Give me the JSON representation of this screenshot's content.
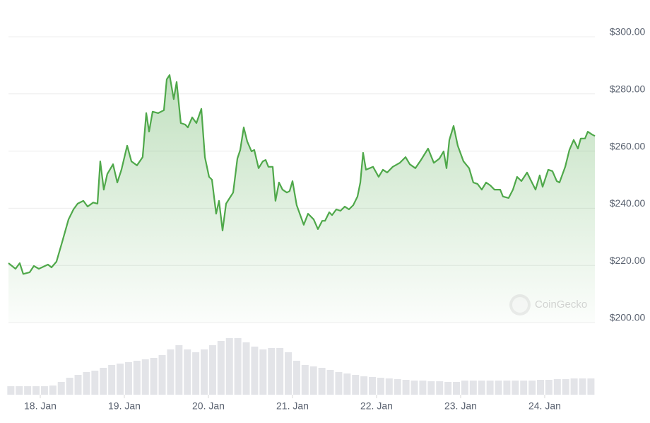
{
  "chart_data": {
    "type": "line",
    "color": "#4fa84a",
    "x": [
      17.622,
      17.706,
      17.756,
      17.798,
      17.874,
      17.924,
      17.983,
      18.092,
      18.134,
      18.193,
      18.261,
      18.336,
      18.395,
      18.445,
      18.513,
      18.563,
      18.63,
      18.681,
      18.714,
      18.756,
      18.798,
      18.866,
      18.916,
      18.966,
      19.034,
      19.084,
      19.151,
      19.218,
      19.261,
      19.294,
      19.336,
      19.403,
      19.471,
      19.504,
      19.538,
      19.588,
      19.622,
      19.672,
      19.723,
      19.756,
      19.807,
      19.857,
      19.916,
      19.958,
      20.008,
      20.042,
      20.092,
      20.126,
      20.168,
      20.21,
      20.294,
      20.345,
      20.378,
      20.42,
      20.462,
      20.513,
      20.546,
      20.597,
      20.647,
      20.681,
      20.714,
      20.765,
      20.798,
      20.84,
      20.882,
      20.933,
      20.966,
      21.0,
      21.05,
      21.134,
      21.185,
      21.252,
      21.303,
      21.353,
      21.387,
      21.437,
      21.471,
      21.521,
      21.571,
      21.622,
      21.672,
      21.723,
      21.773,
      21.807,
      21.84,
      21.874,
      21.958,
      22.025,
      22.076,
      22.126,
      22.193,
      22.277,
      22.345,
      22.395,
      22.462,
      22.529,
      22.613,
      22.681,
      22.748,
      22.798,
      22.832,
      22.866,
      22.916,
      22.966,
      23.034,
      23.101,
      23.151,
      23.202,
      23.252,
      23.303,
      23.353,
      23.403,
      23.471,
      23.504,
      23.571,
      23.622,
      23.672,
      23.723,
      23.79,
      23.84,
      23.891,
      23.941,
      23.975,
      24.042,
      24.092,
      24.143,
      24.176,
      24.244,
      24.294,
      24.345,
      24.395,
      24.429,
      24.479,
      24.513,
      24.563,
      24.597
    ],
    "values": [
      220.8,
      218.8,
      220.8,
      217,
      217.6,
      219.8,
      218.8,
      220.3,
      219.3,
      221.3,
      228.2,
      236.1,
      239.6,
      241.6,
      242.6,
      240.6,
      242,
      241.6,
      256.4,
      246.5,
      252,
      255.4,
      249,
      253.5,
      261.9,
      256.4,
      255,
      257.9,
      273.3,
      266.8,
      273.8,
      273.3,
      274.3,
      285.1,
      286.6,
      278.2,
      284.2,
      269.8,
      269.3,
      268.3,
      271.8,
      269.8,
      274.8,
      257.9,
      251,
      250,
      238.1,
      242.6,
      232.2,
      241.6,
      245.5,
      257.4,
      260.4,
      268.3,
      263.4,
      259.9,
      260.4,
      254,
      256.4,
      256.9,
      254.5,
      254.5,
      242.6,
      249,
      246.5,
      245.5,
      246,
      249.5,
      241.1,
      234.2,
      238.1,
      236.1,
      232.7,
      235.6,
      235.6,
      238.6,
      237.6,
      239.6,
      239.1,
      240.6,
      239.6,
      241.1,
      244.1,
      249,
      259.4,
      253.5,
      254.5,
      251,
      253.5,
      252.5,
      254.5,
      255.9,
      257.9,
      255.4,
      254,
      256.9,
      260.9,
      255.9,
      257.4,
      259.9,
      254,
      263.9,
      268.8,
      261.9,
      256.4,
      254,
      249,
      248.5,
      246.5,
      249,
      248,
      246.5,
      246.5,
      244.1,
      243.6,
      246.5,
      251,
      249.5,
      252.5,
      249.5,
      246.5,
      251.5,
      247.5,
      253.5,
      253,
      249.5,
      249,
      254.5,
      260.4,
      263.9,
      260.9,
      264.4,
      264.4,
      266.8,
      265.8,
      265.3
    ],
    "xlim": [
      17.622,
      24.597
    ],
    "ylim": [
      200,
      300
    ],
    "yticks": [
      {
        "value": 200,
        "label": "$200.00"
      },
      {
        "value": 220,
        "label": "$220.00"
      },
      {
        "value": 240,
        "label": "$240.00"
      },
      {
        "value": 260,
        "label": "$260.00"
      },
      {
        "value": 280,
        "label": "$280.00"
      },
      {
        "value": 300,
        "label": "$300.00"
      }
    ],
    "xticks": [
      {
        "value": 18,
        "label": "18. Jan"
      },
      {
        "value": 19,
        "label": "19. Jan"
      },
      {
        "value": 20,
        "label": "20. Jan"
      },
      {
        "value": 21,
        "label": "21. Jan"
      },
      {
        "value": 22,
        "label": "22. Jan"
      },
      {
        "value": 23,
        "label": "23. Jan"
      },
      {
        "value": 24,
        "label": "24. Jan"
      }
    ],
    "grid": true,
    "watermark": "CoinGecko",
    "volume": {
      "type": "bar",
      "color": "#e3e4e8",
      "ylim": [
        0,
        80
      ],
      "x": [
        17.65,
        17.75,
        17.85,
        17.95,
        18.05,
        18.15,
        18.25,
        18.35,
        18.45,
        18.55,
        18.65,
        18.75,
        18.85,
        18.95,
        19.05,
        19.15,
        19.25,
        19.35,
        19.45,
        19.55,
        19.65,
        19.75,
        19.85,
        19.95,
        20.05,
        20.15,
        20.25,
        20.35,
        20.45,
        20.55,
        20.65,
        20.75,
        20.85,
        20.95,
        21.05,
        21.15,
        21.25,
        21.35,
        21.45,
        21.55,
        21.65,
        21.75,
        21.85,
        21.95,
        22.05,
        22.15,
        22.25,
        22.35,
        22.45,
        22.55,
        22.65,
        22.75,
        22.85,
        22.95,
        23.05,
        23.15,
        23.25,
        23.35,
        23.45,
        23.55,
        23.65,
        23.75,
        23.85,
        23.95,
        24.05,
        24.15,
        24.25,
        24.35,
        24.45,
        24.55
      ],
      "values": [
        12,
        12,
        12,
        12,
        12,
        13,
        18,
        24,
        28,
        32,
        34,
        38,
        42,
        44,
        46,
        48,
        50,
        52,
        56,
        64,
        70,
        64,
        60,
        64,
        70,
        76,
        80,
        80,
        74,
        68,
        64,
        66,
        66,
        60,
        48,
        42,
        40,
        38,
        35,
        32,
        30,
        28,
        26,
        25,
        24,
        23,
        22,
        21,
        20,
        20,
        19,
        19,
        18,
        18,
        20,
        20,
        20,
        20,
        20,
        20,
        20,
        20,
        20,
        21,
        21,
        22,
        22,
        23,
        23,
        23
      ]
    }
  }
}
